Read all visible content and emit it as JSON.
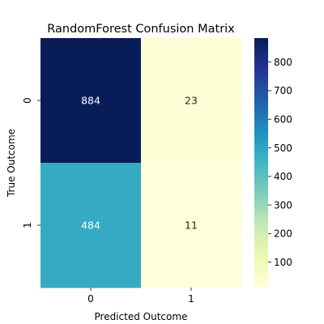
{
  "chart_data": {
    "type": "heatmap",
    "title": "RandomForest Confusion Matrix",
    "xlabel": "Predicted Outcome",
    "ylabel": "True Outcome",
    "x_categories": [
      "0",
      "1"
    ],
    "y_categories": [
      "0",
      "1"
    ],
    "values": [
      [
        884,
        23
      ],
      [
        484,
        11
      ]
    ],
    "colormap": "YlGnBu",
    "colorbar": {
      "min": 11,
      "max": 884,
      "ticks": [
        100,
        200,
        300,
        400,
        500,
        600,
        700,
        800
      ]
    },
    "annotation_colors": {
      "light": "#ffffff",
      "dark": "#262626"
    }
  }
}
